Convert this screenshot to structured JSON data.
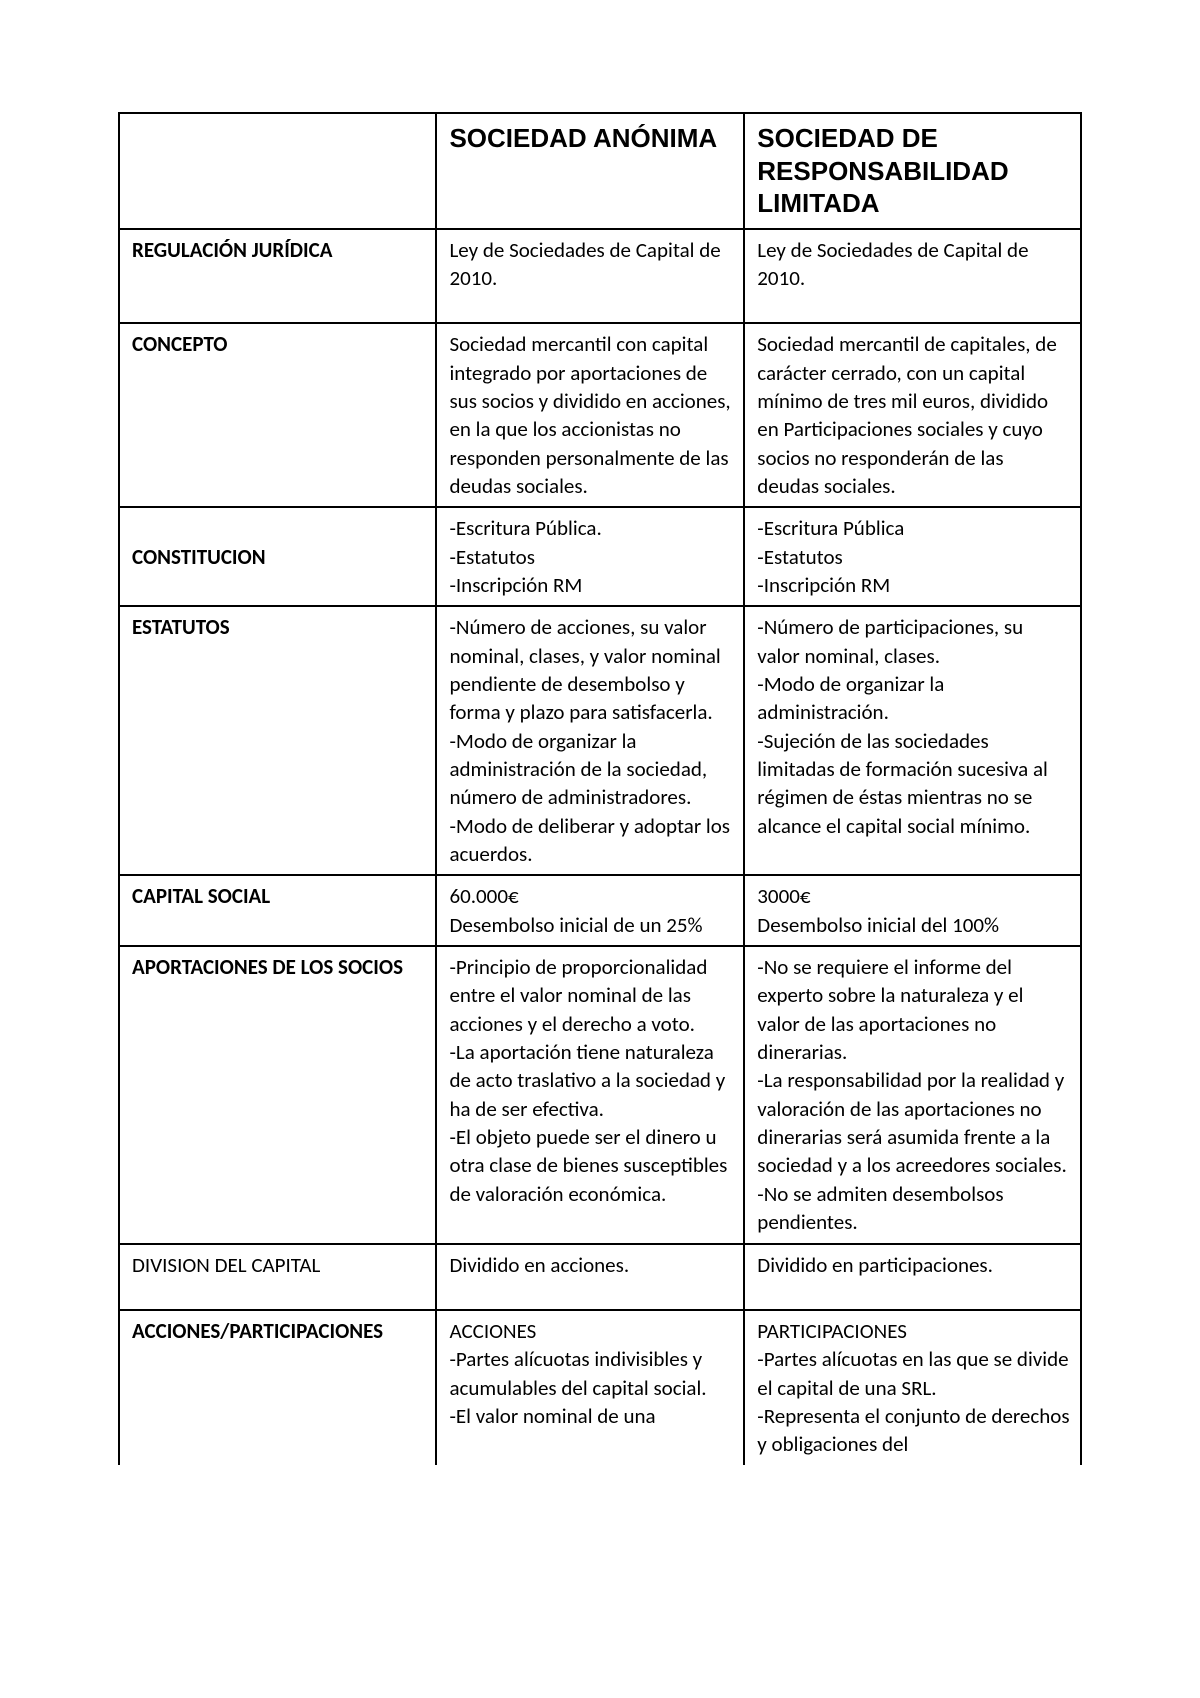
{
  "headers": {
    "blank": "",
    "sa": "SOCIEDAD ANÓNIMA",
    "srl": "SOCIEDAD DE RESPONSABILIDAD LIMITADA"
  },
  "rows": [
    {
      "label": "REGULACIÓN JURÍDICA",
      "label_bold": true,
      "sa": "Ley de Sociedades de Capital de 2010.",
      "srl": "Ley de Sociedades de Capital de 2010.",
      "extra_bottom": true
    },
    {
      "label": "CONCEPTO",
      "label_bold": true,
      "sa": "Sociedad mercantil con capital integrado por aportaciones de sus socios y dividido en acciones, en la que los accionistas no responden personalmente de las deudas sociales.",
      "srl": "Sociedad mercantil de capitales, de carácter cerrado, con un capital mínimo de tres mil euros, dividido en Participaciones sociales y cuyo socios no responderán de las deudas sociales."
    },
    {
      "label": "\nCONSTITUCION",
      "label_bold": true,
      "sa": "-Escritura Pública.\n-Estatutos\n-Inscripción RM",
      "srl": "-Escritura Pública\n-Estatutos\n-Inscripción RM"
    },
    {
      "label": "ESTATUTOS",
      "label_bold": true,
      "sa": "-Número de acciones, su valor nominal, clases, y valor nominal pendiente de desembolso y forma y plazo para satisfacerla.\n-Modo de organizar la administración de la sociedad, número de administradores.\n-Modo de deliberar y adoptar los acuerdos.",
      "srl": "-Número de participaciones, su valor nominal, clases.\n-Modo de organizar la administración.\n-Sujeción de las sociedades limitadas de formación sucesiva al régimen de éstas mientras no se alcance el capital social mínimo."
    },
    {
      "label": "CAPITAL SOCIAL",
      "label_bold": true,
      "sa": "60.000€\nDesembolso inicial de un 25%",
      "srl": "3000€\nDesembolso inicial del 100%"
    },
    {
      "label": "APORTACIONES DE LOS SOCIOS",
      "label_bold": true,
      "sa": "-Principio de proporcionalidad entre el valor nominal de las acciones y el derecho a voto.\n-La aportación tiene naturaleza de acto traslativo a la sociedad y ha de ser efectiva.\n-El objeto puede ser el dinero u otra clase de bienes susceptibles de valoración económica.",
      "srl": "-No se requiere el informe del experto sobre la naturaleza y el valor de las aportaciones no dinerarias.\n-La responsabilidad por la realidad y valoración de las aportaciones no dinerarias será asumida frente a la sociedad y a los acreedores sociales.\n-No se admiten desembolsos pendientes."
    },
    {
      "label": "DIVISION DEL CAPITAL",
      "label_bold": false,
      "sa": "Dividido en acciones.",
      "srl": "Dividido en participaciones.",
      "extra_bottom": true
    },
    {
      "label": "ACCIONES/PARTICIPACIONES",
      "label_bold": true,
      "sa": "ACCIONES\n-Partes alícuotas indivisibles y acumulables del capital social.\n-El valor nominal de una",
      "srl": "PARTICIPACIONES\n-Partes alícuotas en las que se divide el capital de una SRL.\n-Representa el conjunto de derechos y obligaciones del",
      "no_bottom_border": true
    }
  ]
}
